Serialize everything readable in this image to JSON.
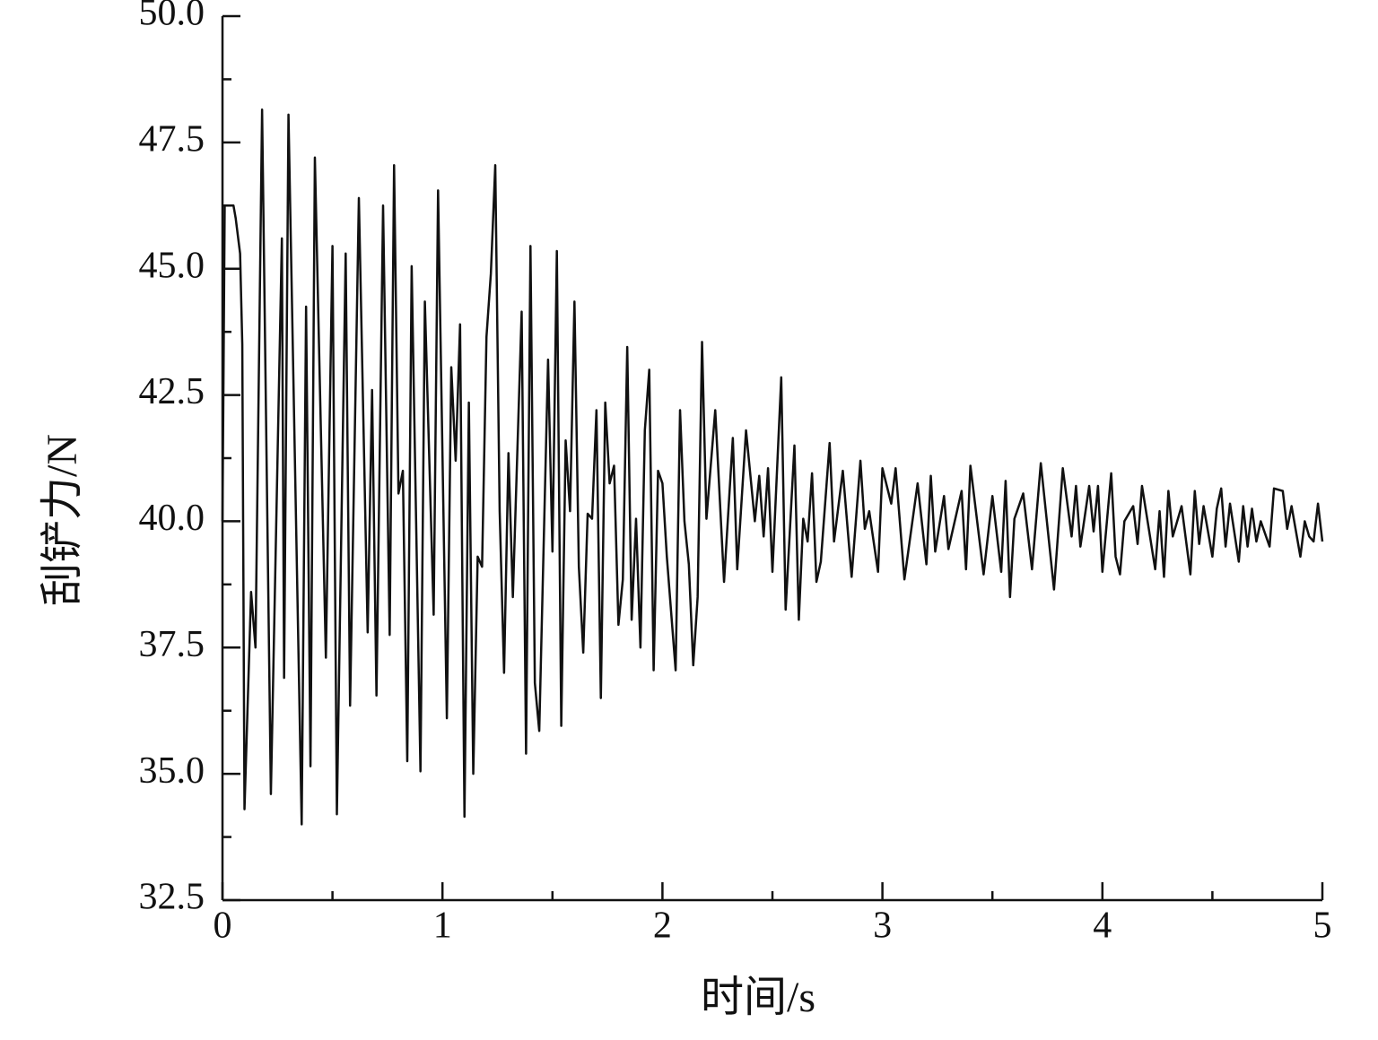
{
  "chart_data": {
    "type": "line",
    "x_label": "时间/s",
    "y_label": "刮铲力/N",
    "xlim": [
      0,
      5
    ],
    "xticks": [
      0,
      1,
      2,
      3,
      4,
      5
    ],
    "xticks_minor": [
      0.5,
      1.5,
      2.5,
      3.5,
      4.5
    ],
    "ylim": [
      32.5,
      50
    ],
    "yticks": [
      32.5,
      {
        "value": 35,
        "label": "35.0"
      },
      37.5,
      {
        "value": 40,
        "label": "40.0"
      },
      42.5,
      {
        "value": 45,
        "label": "45.0"
      },
      47.5,
      {
        "value": 50,
        "label": "50.0"
      }
    ],
    "yticks_minor": [
      33.75,
      36.25,
      38.75,
      41.25,
      43.75,
      46.25,
      48.75
    ],
    "color": "#111111",
    "x": [
      0,
      0.01,
      0.05,
      0.06,
      0.08,
      0.09,
      0.1,
      0.13,
      0.15,
      0.18,
      0.22,
      0.27,
      0.28,
      0.3,
      0.36,
      0.38,
      0.4,
      0.42,
      0.47,
      0.5,
      0.52,
      0.56,
      0.58,
      0.62,
      0.66,
      0.68,
      0.7,
      0.73,
      0.76,
      0.78,
      0.8,
      0.82,
      0.84,
      0.86,
      0.9,
      0.92,
      0.96,
      0.98,
      1.02,
      1.04,
      1.06,
      1.08,
      1.1,
      1.12,
      1.14,
      1.16,
      1.18,
      1.2,
      1.22,
      1.24,
      1.26,
      1.28,
      1.3,
      1.32,
      1.36,
      1.38,
      1.4,
      1.42,
      1.44,
      1.48,
      1.5,
      1.52,
      1.54,
      1.56,
      1.58,
      1.6,
      1.62,
      1.64,
      1.66,
      1.68,
      1.7,
      1.72,
      1.74,
      1.76,
      1.78,
      1.8,
      1.82,
      1.84,
      1.86,
      1.88,
      1.9,
      1.92,
      1.94,
      1.96,
      1.98,
      2.0,
      2.02,
      2.06,
      2.08,
      2.1,
      2.12,
      2.14,
      2.16,
      2.18,
      2.2,
      2.24,
      2.28,
      2.32,
      2.34,
      2.38,
      2.42,
      2.44,
      2.46,
      2.48,
      2.5,
      2.54,
      2.56,
      2.6,
      2.62,
      2.64,
      2.66,
      2.68,
      2.7,
      2.72,
      2.76,
      2.78,
      2.82,
      2.86,
      2.9,
      2.92,
      2.94,
      2.98,
      3.0,
      3.04,
      3.06,
      3.1,
      3.16,
      3.2,
      3.22,
      3.24,
      3.28,
      3.3,
      3.36,
      3.38,
      3.4,
      3.46,
      3.5,
      3.54,
      3.56,
      3.58,
      3.6,
      3.64,
      3.68,
      3.72,
      3.78,
      3.82,
      3.86,
      3.88,
      3.9,
      3.94,
      3.96,
      3.98,
      4.0,
      4.04,
      4.06,
      4.08,
      4.1,
      4.14,
      4.16,
      4.18,
      4.24,
      4.26,
      4.28,
      4.3,
      4.32,
      4.36,
      4.4,
      4.42,
      4.44,
      4.46,
      4.5,
      4.52,
      4.54,
      4.56,
      4.58,
      4.62,
      4.64,
      4.66,
      4.68,
      4.7,
      4.72,
      4.76,
      4.78,
      4.82,
      4.84,
      4.86,
      4.9,
      4.92,
      4.94,
      4.96,
      4.98,
      5.0
    ],
    "values": [
      40.0,
      46.25,
      46.25,
      46.0,
      45.3,
      43.5,
      34.3,
      38.6,
      37.5,
      48.15,
      34.6,
      45.6,
      36.9,
      48.05,
      34.0,
      44.25,
      35.15,
      47.2,
      37.3,
      45.45,
      34.2,
      45.3,
      36.35,
      46.4,
      37.8,
      42.6,
      36.55,
      46.25,
      37.75,
      47.05,
      40.55,
      41.0,
      35.25,
      45.05,
      35.05,
      44.35,
      38.15,
      46.55,
      36.1,
      43.05,
      41.2,
      43.9,
      34.15,
      42.35,
      35.0,
      39.3,
      39.1,
      43.65,
      44.9,
      47.05,
      40.2,
      37.0,
      41.35,
      38.5,
      44.15,
      35.4,
      45.45,
      36.8,
      35.85,
      43.2,
      39.4,
      45.35,
      35.95,
      41.6,
      40.2,
      44.35,
      39.1,
      37.4,
      40.15,
      40.05,
      42.2,
      36.5,
      42.35,
      40.75,
      41.1,
      37.95,
      38.85,
      43.45,
      38.05,
      40.05,
      37.5,
      41.8,
      43.0,
      37.05,
      41.0,
      40.75,
      39.3,
      37.05,
      42.2,
      40.0,
      39.15,
      37.15,
      38.5,
      43.55,
      40.05,
      42.2,
      38.8,
      41.65,
      39.05,
      41.8,
      40.0,
      40.9,
      39.7,
      41.05,
      39.0,
      42.85,
      38.25,
      41.5,
      38.05,
      40.05,
      39.6,
      40.95,
      38.8,
      39.2,
      41.55,
      39.6,
      41.0,
      38.9,
      41.2,
      39.85,
      40.2,
      39.0,
      41.05,
      40.35,
      41.05,
      38.85,
      40.75,
      39.15,
      40.9,
      39.4,
      40.5,
      39.45,
      40.6,
      39.05,
      41.1,
      38.95,
      40.5,
      39.0,
      40.8,
      38.5,
      40.05,
      40.55,
      39.05,
      41.15,
      38.65,
      41.05,
      39.7,
      40.7,
      39.5,
      40.7,
      39.8,
      40.7,
      39.0,
      40.95,
      39.3,
      38.95,
      40.0,
      40.3,
      39.55,
      40.7,
      39.05,
      40.2,
      38.9,
      40.6,
      39.7,
      40.3,
      38.95,
      40.6,
      39.55,
      40.3,
      39.3,
      40.25,
      40.65,
      39.5,
      40.35,
      39.2,
      40.3,
      39.5,
      40.25,
      39.6,
      40.0,
      39.5,
      40.65,
      40.6,
      39.85,
      40.3,
      39.3,
      40.0,
      39.7,
      39.6,
      40.35,
      39.6
    ]
  }
}
